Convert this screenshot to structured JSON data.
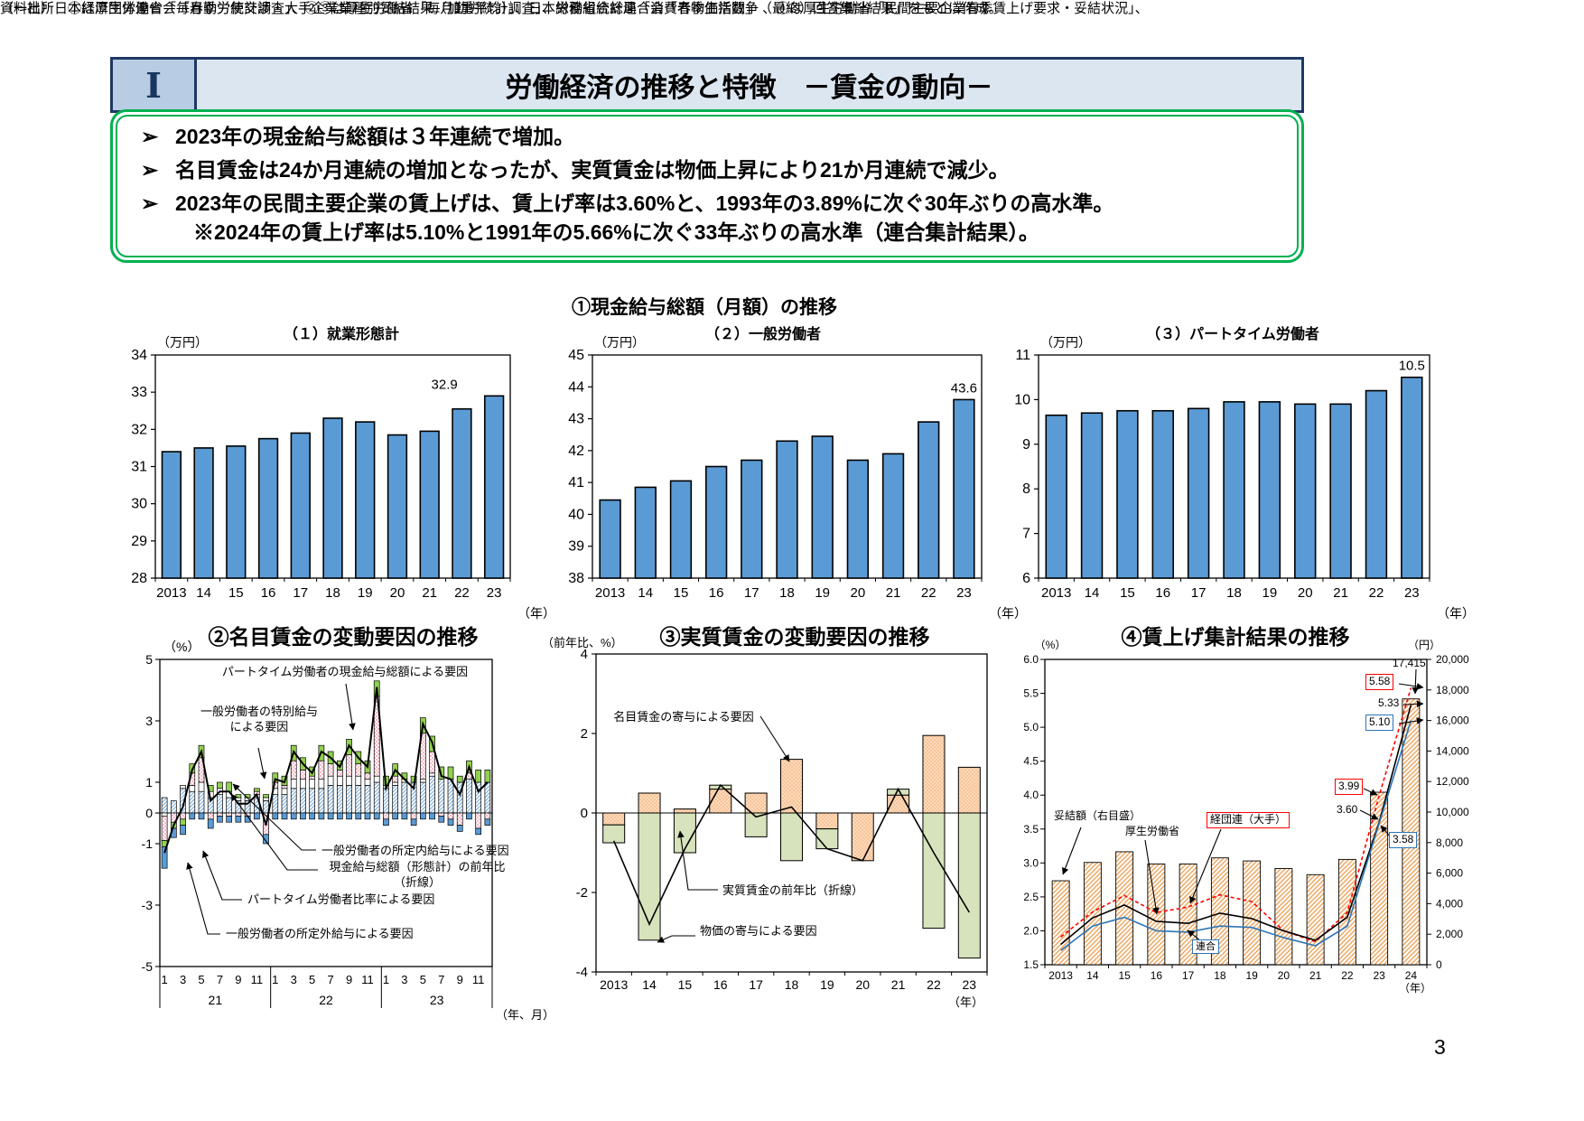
{
  "page": {
    "section_marker": "Ⅰ",
    "title": "労働経済の推移と特徴　－賃金の動向－",
    "page_number": "3",
    "bullet_marker": "➢",
    "bullets": [
      "2023年の現金給与総額は３年連続で増加。",
      "名目賃金は24か月連続の増加となったが、実質賃金は物価上昇により21か月連続で減少。",
      "2023年の民間主要企業の賃上げは、賃上げ率は3.60%と、1993年の3.89%に次ぐ30年ぶりの高水準。",
      "※2024年の賃上げ率は5.10%と1991年の5.66%に次ぐ33年ぶりの高水準（連合集計結果）。"
    ],
    "source_line1": "資料出所　①は厚生労働省「毎月勤労統計調査」、②③は厚生労働省「毎月勤労統計調査」、総務省統計局「消費者物価指数」 、④は厚生労働省「民間主要企業春季賃上げ要求・妥結状況」、",
    "source_line2": "（一社）日本経済団体連合会「春季労使交渉・大手企業業種別妥結結果（加重平均）」、日本労働組合総連合会「春季生活闘争（最終）回答集計結果」をもとに作成。",
    "colors": {
      "header_fill": "#dce6f1",
      "header_border": "#1f3864",
      "marker_fill": "#b8cce4",
      "summary_border": "#00b050",
      "bar_blue": "#5b9bd5",
      "pt_green": "#92d050",
      "keidanren_red": "#ff0000",
      "rengo_blue": "#2e75b6",
      "pale_orange": "#fcd9bb",
      "pale_green": "#d6e3bc"
    }
  },
  "section1": {
    "title": "①現金給与総額（月額）の推移"
  },
  "chart_data": [
    {
      "id": "cash-wage-total",
      "type": "bar",
      "title": "（１）就業形態計",
      "unit": "（万円）",
      "x_unit": "（年）",
      "categories": [
        "2013",
        "14",
        "15",
        "16",
        "17",
        "18",
        "19",
        "20",
        "21",
        "22",
        "23"
      ],
      "values": [
        31.4,
        31.5,
        31.55,
        31.75,
        31.9,
        32.3,
        32.2,
        31.85,
        31.95,
        32.55,
        32.9
      ],
      "ylim": [
        28,
        34
      ],
      "ytick_step": 1,
      "last_value_label": "32.9",
      "bar_color": "#5b9bd5"
    },
    {
      "id": "cash-wage-general",
      "type": "bar",
      "title": "（２）一般労働者",
      "unit": "（万円）",
      "x_unit": "（年）",
      "categories": [
        "2013",
        "14",
        "15",
        "16",
        "17",
        "18",
        "19",
        "20",
        "21",
        "22",
        "23"
      ],
      "values": [
        40.45,
        40.85,
        41.05,
        41.5,
        41.7,
        42.3,
        42.45,
        41.7,
        41.9,
        42.9,
        43.6
      ],
      "ylim": [
        38,
        45
      ],
      "ytick_step": 1,
      "last_value_label": "43.6",
      "bar_color": "#5b9bd5"
    },
    {
      "id": "cash-wage-parttime",
      "type": "bar",
      "title": "（３）パートタイム労働者",
      "unit": "（万円）",
      "x_unit": "（年）",
      "categories": [
        "2013",
        "14",
        "15",
        "16",
        "17",
        "18",
        "19",
        "20",
        "21",
        "22",
        "23"
      ],
      "values": [
        9.65,
        9.7,
        9.75,
        9.75,
        9.8,
        9.95,
        9.95,
        9.9,
        9.9,
        10.2,
        10.5
      ],
      "ylim": [
        6,
        11
      ],
      "ytick_step": 1,
      "last_value_label": "10.5",
      "bar_color": "#5b9bd5"
    },
    {
      "id": "nominal-wage-factors",
      "type": "stacked-bar-line-monthly",
      "title": "②名目賃金の変動要因の推移",
      "unit": "（%）",
      "x_unit": "（年、月）",
      "year_groups": [
        "21",
        "22",
        "23"
      ],
      "month_ticks": [
        "1",
        "3",
        "5",
        "7",
        "9",
        "11"
      ],
      "ylim": [
        -5,
        5
      ],
      "yticks": [
        5,
        3,
        1,
        0,
        -1,
        -3,
        -5
      ],
      "series": [
        {
          "name": "一般労働者の所定内給与による要因",
          "style": "hatch-blue",
          "values": [
            0.5,
            0.4,
            0.8,
            0.7,
            0.7,
            0.5,
            0.6,
            0.5,
            0.4,
            0.4,
            0.5,
            0.4,
            0.6,
            0.6,
            0.8,
            0.8,
            0.8,
            0.8,
            0.9,
            0.9,
            0.9,
            0.9,
            0.9,
            1.0,
            0.8,
            0.9,
            1.0,
            1.0,
            1.0,
            1.2,
            1.1,
            1.1,
            1.0,
            1.1,
            1.0,
            1.0
          ]
        },
        {
          "name": "一般労働者の所定外給与による要因",
          "style": "white",
          "values": [
            -0.1,
            0.0,
            0.1,
            0.2,
            0.3,
            0.2,
            0.2,
            0.2,
            0.1,
            0.1,
            0.1,
            0.1,
            0.2,
            0.2,
            0.3,
            0.3,
            0.3,
            0.3,
            0.3,
            0.3,
            0.3,
            0.3,
            0.2,
            0.2,
            0.1,
            0.1,
            0.1,
            0.0,
            0.1,
            0.1,
            0.0,
            0.0,
            0.0,
            0.0,
            0.0,
            0.0
          ]
        },
        {
          "name": "一般労働者の特別給与による要因",
          "style": "dots-pink",
          "values": [
            -0.8,
            -0.3,
            -0.2,
            0.4,
            0.8,
            -0.2,
            -0.1,
            -0.1,
            -0.1,
            -0.1,
            0.1,
            -0.7,
            0.2,
            0.1,
            0.6,
            0.3,
            0.1,
            0.6,
            0.4,
            0.2,
            0.7,
            0.4,
            0.2,
            2.6,
            -0.2,
            0.2,
            0.0,
            -0.2,
            1.5,
            0.7,
            -0.1,
            -0.2,
            -0.4,
            0.2,
            -0.5,
            -0.2
          ]
        },
        {
          "name": "パートタイム労働者の現金給与総額による要因",
          "style": "solid-green",
          "values": [
            -0.2,
            -0.2,
            -0.2,
            0.3,
            0.4,
            0.2,
            0.2,
            0.3,
            0.1,
            0.1,
            0.1,
            0.1,
            0.3,
            0.3,
            0.5,
            0.4,
            0.3,
            0.5,
            0.4,
            0.3,
            0.5,
            0.4,
            0.4,
            0.5,
            0.3,
            0.4,
            0.2,
            0.2,
            0.5,
            0.5,
            0.4,
            0.4,
            0.2,
            0.4,
            0.4,
            0.4
          ]
        },
        {
          "name": "パートタイム労働者比率による要因",
          "style": "solid-blue",
          "values": [
            -0.7,
            -0.3,
            -0.3,
            -0.2,
            -0.2,
            -0.3,
            -0.2,
            -0.2,
            -0.2,
            -0.2,
            -0.2,
            -0.3,
            -0.2,
            -0.2,
            -0.2,
            -0.2,
            -0.2,
            -0.2,
            -0.2,
            -0.2,
            -0.2,
            -0.2,
            -0.2,
            -0.2,
            -0.2,
            -0.2,
            -0.2,
            -0.2,
            -0.2,
            -0.2,
            -0.2,
            -0.2,
            -0.2,
            -0.2,
            -0.2,
            -0.2
          ]
        }
      ],
      "line": {
        "name": "現金給与総額（形態計）の前年比（折線）",
        "values": [
          -1.3,
          -0.4,
          0.2,
          1.4,
          2.0,
          0.4,
          0.7,
          0.7,
          0.3,
          0.3,
          0.6,
          -0.4,
          1.1,
          1.0,
          2.0,
          1.6,
          1.3,
          2.0,
          1.8,
          1.5,
          2.2,
          1.8,
          1.5,
          4.1,
          0.8,
          1.4,
          1.1,
          0.8,
          2.9,
          2.3,
          1.2,
          1.1,
          0.6,
          1.5,
          0.7,
          1.0
        ]
      },
      "annotations": [
        {
          "text": "パートタイム労働者の現金給与総額による要因"
        },
        {
          "text": "一般労働者の特別給与\nによる要因"
        },
        {
          "text": "一般労働者の所定内給与による要因"
        },
        {
          "text": "現金給与総額（形態計）の前年比\n（折線）"
        },
        {
          "text": "パートタイム労働者比率による要因"
        },
        {
          "text": "一般労働者の所定外給与による要因"
        }
      ]
    },
    {
      "id": "real-wage-factors",
      "type": "stacked-bar-line-annual",
      "title": "③実質賃金の変動要因の推移",
      "unit": "（前年比、%）",
      "x_unit": "（年）",
      "categories": [
        "2013",
        "14",
        "15",
        "16",
        "17",
        "18",
        "19",
        "20",
        "21",
        "22",
        "23"
      ],
      "ylim": [
        -4,
        4
      ],
      "yticks": [
        4,
        2,
        0,
        -2,
        -4
      ],
      "series": [
        {
          "name": "名目賃金の寄与による要因",
          "style": "dots-orange",
          "values": [
            -0.3,
            0.5,
            0.1,
            0.6,
            0.5,
            1.35,
            -0.4,
            -1.2,
            0.45,
            1.95,
            1.15
          ]
        },
        {
          "name": "物価の寄与による要因",
          "style": "solid-palegreen",
          "values": [
            -0.45,
            -3.2,
            -1.0,
            0.1,
            -0.6,
            -1.2,
            -0.5,
            0.0,
            0.15,
            -2.9,
            -3.65
          ]
        }
      ],
      "line": {
        "name": "実質賃金の前年比（折線）",
        "values": [
          -0.7,
          -2.8,
          -0.9,
          0.7,
          -0.1,
          0.15,
          -0.9,
          -1.2,
          0.6,
          -1.0,
          -2.5
        ]
      },
      "annotations": [
        {
          "text": "名目賃金の寄与による要因"
        },
        {
          "text": "実質賃金の前年比（折線）"
        },
        {
          "text": "物価の寄与による要因"
        }
      ]
    },
    {
      "id": "wage-hike-results",
      "type": "dual-axis",
      "title": "④賃上げ集計結果の推移",
      "unit_left": "（%）",
      "unit_right": "（円）",
      "x_unit": "（年）",
      "categories": [
        "2013",
        "14",
        "15",
        "16",
        "17",
        "18",
        "19",
        "20",
        "21",
        "22",
        "23",
        "24"
      ],
      "ylim_left": [
        1.5,
        6.0
      ],
      "ytick_step_left": 0.5,
      "ylim_right": [
        0,
        20000
      ],
      "ytick_step_right": 2000,
      "bars": {
        "name": "妥結額（右目盛）",
        "style": "hatch-orange",
        "values": [
          5500,
          6700,
          7400,
          6600,
          6600,
          7000,
          6800,
          6300,
          5900,
          6900,
          11300,
          17415
        ]
      },
      "lines": [
        {
          "name": "経団連（大手）",
          "color": "#ff0000",
          "dash": true,
          "values": [
            1.91,
            2.28,
            2.52,
            2.27,
            2.35,
            2.53,
            2.43,
            2.0,
            1.84,
            2.27,
            3.99,
            5.58
          ]
        },
        {
          "name": "厚生労働省",
          "color": "#000000",
          "dash": false,
          "values": [
            1.8,
            2.19,
            2.38,
            2.14,
            2.11,
            2.26,
            2.18,
            2.0,
            1.86,
            2.2,
            3.6,
            5.33
          ]
        },
        {
          "name": "連合",
          "color": "#2e75b6",
          "dash": false,
          "values": [
            1.71,
            2.07,
            2.2,
            2.0,
            1.98,
            2.07,
            2.05,
            1.9,
            1.78,
            2.07,
            3.58,
            5.1
          ]
        }
      ],
      "series_labels": [
        {
          "text": "妥結額（右目盛）",
          "box": "none"
        },
        {
          "text": "厚生労働省",
          "box": "none"
        },
        {
          "text": "経団連（大手）",
          "box": "red"
        },
        {
          "text": "連合",
          "box": "blue"
        }
      ],
      "value_labels": [
        {
          "text": "17,415",
          "box": "none"
        },
        {
          "text": "5.58",
          "box": "red"
        },
        {
          "text": "5.33",
          "box": "none"
        },
        {
          "text": "5.10",
          "box": "blue"
        },
        {
          "text": "3.99",
          "box": "red"
        },
        {
          "text": "3.60",
          "box": "none"
        },
        {
          "text": "3.58",
          "box": "blue"
        }
      ]
    }
  ]
}
